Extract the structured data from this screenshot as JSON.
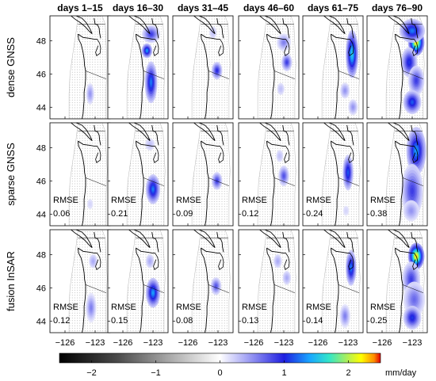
{
  "column_headers": [
    "days 1–15",
    "days 16–30",
    "days 31–45",
    "days 46–60",
    "days 61–75",
    "days 76–90"
  ],
  "row_labels": [
    "dense GNSS",
    "sparse GNSS",
    "fusion InSAR"
  ],
  "y_ticks": [
    "48",
    "46",
    "44"
  ],
  "x_ticks": [
    "−126",
    "−123"
  ],
  "rmse": {
    "label": "RMSE",
    "sparse_gnss": [
      "0.06",
      "0.21",
      "0.09",
      "0.12",
      "0.24",
      "0.38"
    ],
    "fusion_insar": [
      "0.12",
      "0.15",
      "0.08",
      "0.13",
      "0.14",
      "0.25"
    ]
  },
  "colorbar": {
    "ticks": [
      "−2",
      "−1",
      "0",
      "1",
      "2"
    ],
    "unit": "mm/day",
    "range": [
      -2.5,
      2.5
    ]
  },
  "chart_data": {
    "type": "heatmap",
    "rows": [
      "dense GNSS",
      "sparse GNSS",
      "fusion InSAR"
    ],
    "columns": [
      "days 1–15",
      "days 16–30",
      "days 31–45",
      "days 46–60",
      "days 61–75",
      "days 76–90"
    ],
    "x_range": [
      -127.5,
      -121.5
    ],
    "y_range": [
      43.3,
      49.5
    ],
    "value_range": [
      -2.5,
      2.5
    ],
    "value_unit": "mm/day",
    "rmse_sparse_gnss": [
      0.06,
      0.21,
      0.09,
      0.12,
      0.24,
      0.38
    ],
    "rmse_fusion_insar": [
      0.12,
      0.15,
      0.08,
      0.13,
      0.14,
      0.25
    ],
    "slip_patches": [
      [
        [
          {
            "lon": -123.5,
            "lat": 44.8,
            "peak": 0.5,
            "sx": 0.25,
            "sy": 0.4
          }
        ],
        [
          {
            "lon": -123.2,
            "lat": 48.4,
            "peak": 0.9,
            "sx": 0.5,
            "sy": 0.3
          },
          {
            "lon": -123.6,
            "lat": 47.4,
            "peak": 1.4,
            "sx": 0.3,
            "sy": 0.25
          },
          {
            "lon": -123.2,
            "lat": 45.5,
            "peak": 1.3,
            "sx": 0.35,
            "sy": 0.7
          }
        ],
        [
          {
            "lon": -123.5,
            "lat": 48.5,
            "peak": 0.3,
            "sx": 0.3,
            "sy": 0.3
          },
          {
            "lon": -123.1,
            "lat": 46.2,
            "peak": 1.0,
            "sx": 0.3,
            "sy": 0.3
          }
        ],
        [
          {
            "lon": -123.0,
            "lat": 47.9,
            "peak": 0.6,
            "sx": 0.4,
            "sy": 0.3
          },
          {
            "lon": -122.7,
            "lat": 46.7,
            "peak": 0.9,
            "sx": 0.3,
            "sy": 0.3
          },
          {
            "lon": -123.3,
            "lat": 45.1,
            "peak": 0.3,
            "sx": 0.3,
            "sy": 0.3
          }
        ],
        [
          {
            "lon": -122.6,
            "lat": 47.2,
            "peak": 1.6,
            "sx": 0.35,
            "sy": 0.8
          },
          {
            "lon": -123.3,
            "lat": 45.0,
            "peak": 0.5,
            "sx": 0.3,
            "sy": 0.3
          },
          {
            "lon": -122.5,
            "lat": 44.0,
            "peak": 0.5,
            "sx": 0.3,
            "sy": 0.3
          }
        ],
        [
          {
            "lon": -122.6,
            "lat": 47.9,
            "peak": 2.3,
            "sx": 0.45,
            "sy": 0.45
          },
          {
            "lon": -123.0,
            "lat": 48.6,
            "peak": 1.3,
            "sx": 0.7,
            "sy": 0.4
          },
          {
            "lon": -123.3,
            "lat": 46.7,
            "peak": 1.1,
            "sx": 0.45,
            "sy": 0.5
          },
          {
            "lon": -122.6,
            "lat": 45.6,
            "peak": 0.9,
            "sx": 0.45,
            "sy": 0.5
          },
          {
            "lon": -123.0,
            "lat": 44.3,
            "peak": 1.2,
            "sx": 0.5,
            "sy": 0.4
          }
        ]
      ],
      [
        [
          {
            "lon": -123.5,
            "lat": 44.6,
            "peak": 0.2,
            "sx": 0.3,
            "sy": 0.3
          }
        ],
        [
          {
            "lon": -123.0,
            "lat": 45.5,
            "peak": 1.3,
            "sx": 0.4,
            "sy": 0.5
          },
          {
            "lon": -123.3,
            "lat": 48.2,
            "peak": 0.3,
            "sx": 0.4,
            "sy": 0.3
          }
        ],
        [
          {
            "lon": -123.1,
            "lat": 46.0,
            "peak": 0.9,
            "sx": 0.3,
            "sy": 0.3
          }
        ],
        [
          {
            "lon": -123.0,
            "lat": 46.3,
            "peak": 0.8,
            "sx": 0.3,
            "sy": 0.35
          },
          {
            "lon": -123.4,
            "lat": 47.5,
            "peak": 0.3,
            "sx": 0.3,
            "sy": 0.3
          }
        ],
        [
          {
            "lon": -123.0,
            "lat": 46.5,
            "peak": 1.2,
            "sx": 0.3,
            "sy": 0.6
          },
          {
            "lon": -123.2,
            "lat": 44.2,
            "peak": 0.2,
            "sx": 0.3,
            "sy": 0.3
          }
        ],
        [
          {
            "lon": -122.6,
            "lat": 47.8,
            "peak": 1.4,
            "sx": 0.55,
            "sy": 0.8
          },
          {
            "lon": -123.0,
            "lat": 45.4,
            "peak": 0.9,
            "sx": 0.6,
            "sy": 0.9
          },
          {
            "lon": -123.1,
            "lat": 44.2,
            "peak": 0.5,
            "sx": 0.5,
            "sy": 0.4
          }
        ]
      ],
      [
        [
          {
            "lon": -123.2,
            "lat": 47.6,
            "peak": 0.4,
            "sx": 0.3,
            "sy": 0.3
          },
          {
            "lon": -123.4,
            "lat": 44.8,
            "peak": 0.6,
            "sx": 0.3,
            "sy": 0.5
          }
        ],
        [
          {
            "lon": -123.0,
            "lat": 45.7,
            "peak": 1.4,
            "sx": 0.4,
            "sy": 0.5
          },
          {
            "lon": -123.3,
            "lat": 47.6,
            "peak": 0.4,
            "sx": 0.3,
            "sy": 0.3
          }
        ],
        [
          {
            "lon": -123.2,
            "lat": 46.1,
            "peak": 0.8,
            "sx": 0.3,
            "sy": 0.3
          }
        ],
        [
          {
            "lon": -123.6,
            "lat": 47.6,
            "peak": 0.4,
            "sx": 0.3,
            "sy": 0.3
          },
          {
            "lon": -122.7,
            "lat": 46.6,
            "peak": 0.4,
            "sx": 0.3,
            "sy": 0.3
          }
        ],
        [
          {
            "lon": -122.7,
            "lat": 47.2,
            "peak": 1.3,
            "sx": 0.3,
            "sy": 0.6
          },
          {
            "lon": -123.3,
            "lat": 44.3,
            "peak": 0.6,
            "sx": 0.3,
            "sy": 0.4
          }
        ],
        [
          {
            "lon": -122.6,
            "lat": 47.9,
            "peak": 2.3,
            "sx": 0.45,
            "sy": 0.45
          },
          {
            "lon": -123.1,
            "lat": 46.5,
            "peak": 0.9,
            "sx": 0.5,
            "sy": 0.6
          },
          {
            "lon": -122.8,
            "lat": 45.3,
            "peak": 0.7,
            "sx": 0.6,
            "sy": 0.6
          },
          {
            "lon": -123.0,
            "lat": 44.2,
            "peak": 1.1,
            "sx": 0.5,
            "sy": 0.4
          }
        ]
      ]
    ]
  }
}
